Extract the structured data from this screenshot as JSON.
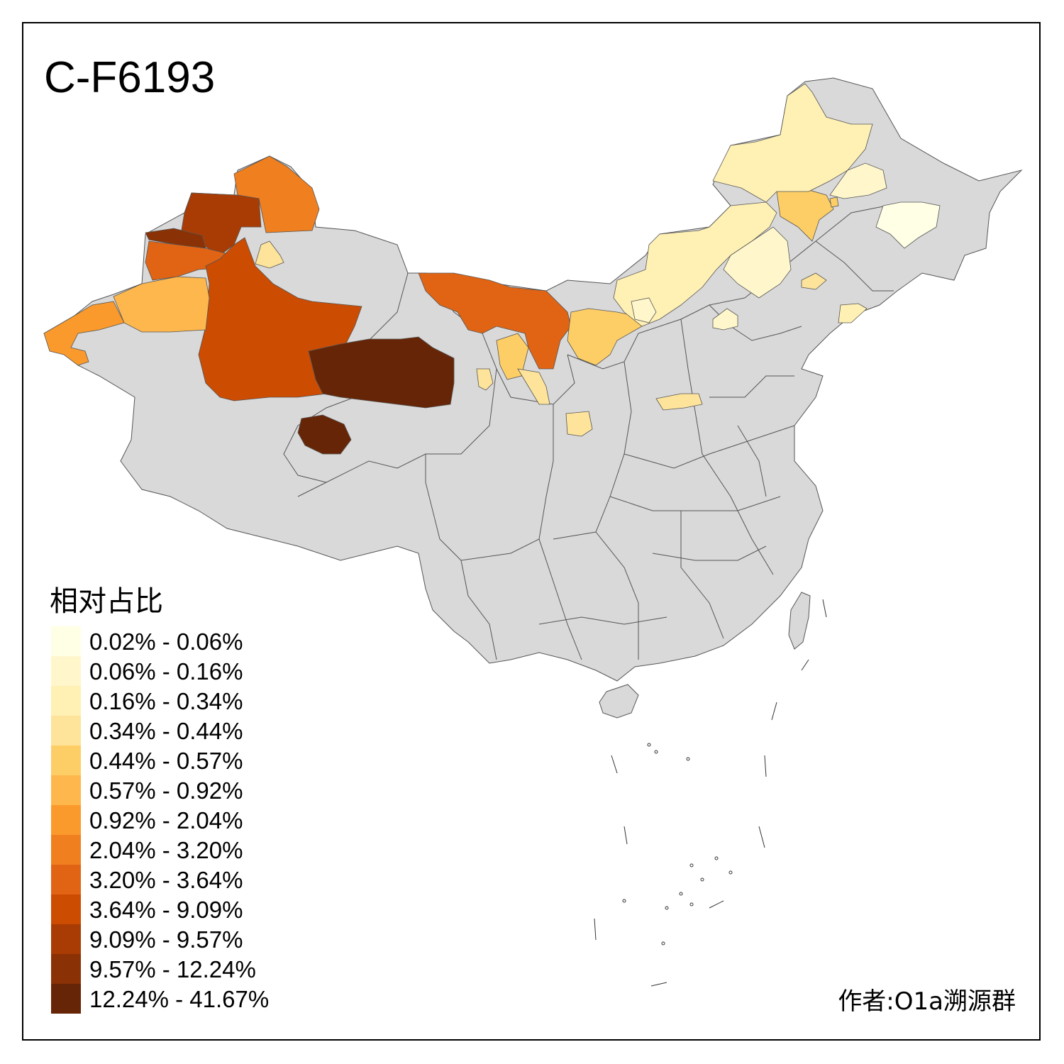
{
  "title": "C-F6193",
  "legend": {
    "title": "相对占比",
    "classes": [
      {
        "label": "0.02% - 0.06%",
        "color": "#ffffe5"
      },
      {
        "label": "0.06% - 0.16%",
        "color": "#fff7cb"
      },
      {
        "label": "0.16% - 0.34%",
        "color": "#fff0b4"
      },
      {
        "label": "0.34% - 0.44%",
        "color": "#fee49a"
      },
      {
        "label": "0.44% - 0.57%",
        "color": "#fece66"
      },
      {
        "label": "0.57% - 0.92%",
        "color": "#feb74c"
      },
      {
        "label": "0.92% - 2.04%",
        "color": "#fb9a2c"
      },
      {
        "label": "2.04% - 3.20%",
        "color": "#f07f1f"
      },
      {
        "label": "3.20% - 3.64%",
        "color": "#e16414"
      },
      {
        "label": "3.64% - 9.09%",
        "color": "#cc4c02"
      },
      {
        "label": "9.09% - 9.57%",
        "color": "#a93c04"
      },
      {
        "label": "9.57% - 12.24%",
        "color": "#8a3105"
      },
      {
        "label": "12.24% - 41.67%",
        "color": "#662506"
      }
    ]
  },
  "credit": "作者:O1a溯源群",
  "map": {
    "no_data_color": "#d9d9d9",
    "border_color": "#555555"
  }
}
